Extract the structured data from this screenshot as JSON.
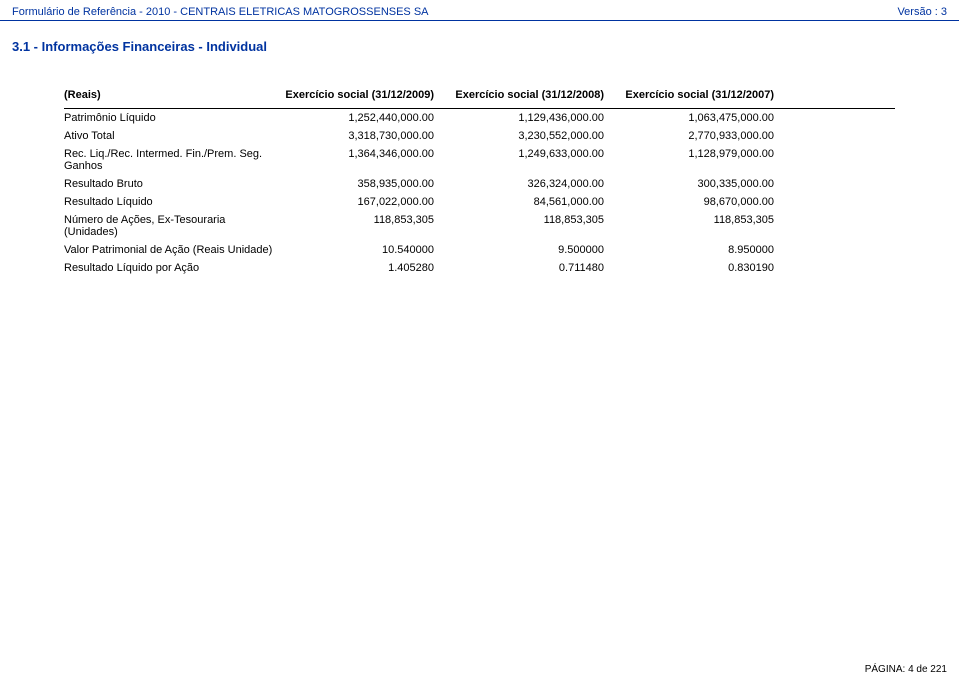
{
  "header": {
    "left": "Formulário de Referência - 2010 - CENTRAIS ELETRICAS MATOGROSSENSES SA",
    "right": "Versão : 3"
  },
  "section_title": "3.1 - Informações Financeiras - Individual",
  "table": {
    "unit_label": "(Reais)",
    "col_headers": [
      "Exercício social (31/12/2009)",
      "Exercício social (31/12/2008)",
      "Exercício social (31/12/2007)"
    ],
    "rows": [
      {
        "label": "Patrimônio Líquido",
        "v": [
          "1,252,440,000.00",
          "1,129,436,000.00",
          "1,063,475,000.00"
        ]
      },
      {
        "label": "Ativo Total",
        "v": [
          "3,318,730,000.00",
          "3,230,552,000.00",
          "2,770,933,000.00"
        ]
      },
      {
        "label": "Rec. Liq./Rec. Intermed. Fin./Prem. Seg. Ganhos",
        "v": [
          "1,364,346,000.00",
          "1,249,633,000.00",
          "1,128,979,000.00"
        ]
      },
      {
        "label": "Resultado Bruto",
        "v": [
          "358,935,000.00",
          "326,324,000.00",
          "300,335,000.00"
        ]
      },
      {
        "label": "Resultado Líquido",
        "v": [
          "167,022,000.00",
          "84,561,000.00",
          "98,670,000.00"
        ]
      },
      {
        "label": "Número de Ações, Ex-Tesouraria (Unidades)",
        "v": [
          "118,853,305",
          "118,853,305",
          "118,853,305"
        ]
      },
      {
        "label": "Valor Patrimonial de Ação (Reais Unidade)",
        "v": [
          "10.540000",
          "9.500000",
          "8.950000"
        ]
      },
      {
        "label": "Resultado Líquido por Ação",
        "v": [
          "1.405280",
          "0.711480",
          "0.830190"
        ]
      }
    ]
  },
  "footer": "PÁGINA: 4 de 221"
}
